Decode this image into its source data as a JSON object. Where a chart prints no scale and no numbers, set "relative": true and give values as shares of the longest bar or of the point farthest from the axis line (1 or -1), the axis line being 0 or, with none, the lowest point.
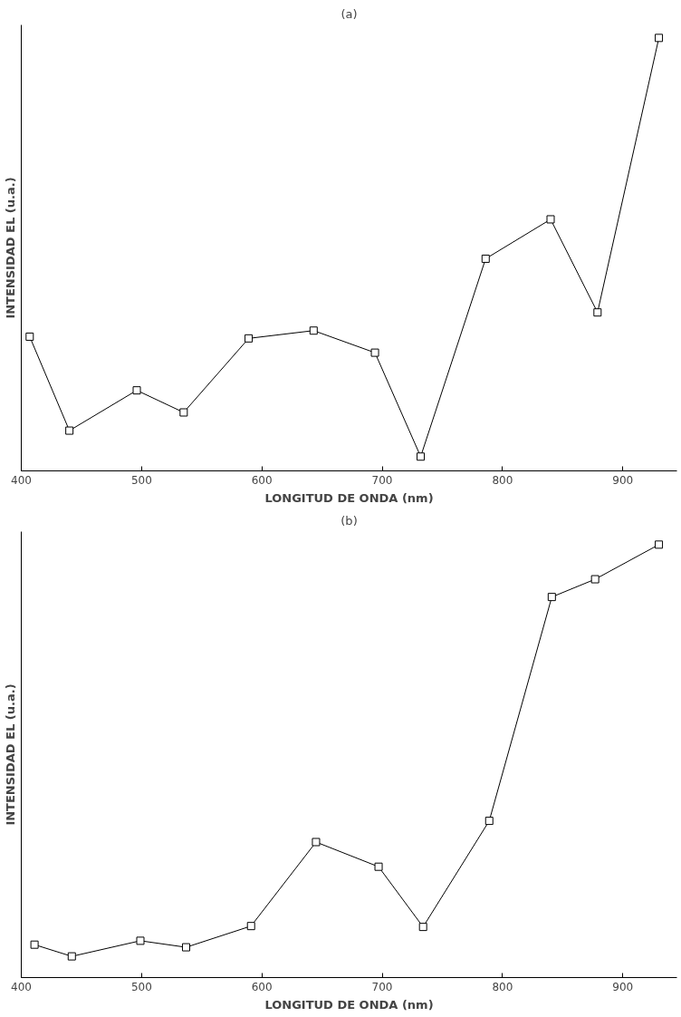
{
  "chart_data": [
    {
      "type": "line",
      "title": "(a)",
      "xlabel": "LONGITUD DE ONDA (nm)",
      "ylabel": "INTENSIDAD EL (u.a.)",
      "relative": true,
      "marker": "square",
      "line_style": "solid",
      "tick_labels": "x",
      "x": [
        407,
        440,
        496,
        535,
        589,
        643,
        694,
        732,
        786,
        840,
        879,
        930
      ],
      "xlim": [
        400,
        945
      ],
      "xticks": [
        400,
        500,
        600,
        700,
        800,
        900
      ],
      "series": [
        {
          "color": "#000000",
          "values": [
            0.31,
            0.093,
            0.186,
            0.135,
            0.306,
            0.324,
            0.273,
            0.033,
            0.49,
            0.581,
            0.366,
            1
          ]
        }
      ]
    },
    {
      "type": "line",
      "title": "(b)",
      "xlabel": "LONGITUD DE ONDA (nm)",
      "ylabel": "INTENSIDAD EL (u.a.)",
      "relative": true,
      "marker": "square",
      "line_style": "solid",
      "tick_labels": "x",
      "x": [
        411,
        442,
        499,
        537,
        591,
        645,
        697,
        734,
        789,
        841,
        877,
        930
      ],
      "xlim": [
        400,
        945
      ],
      "xticks": [
        400,
        500,
        600,
        700,
        800,
        900
      ],
      "series": [
        {
          "color": "#000000",
          "values": [
            0.076,
            0.049,
            0.085,
            0.07,
            0.119,
            0.313,
            0.256,
            0.117,
            0.362,
            0.879,
            0.92,
            1
          ]
        }
      ]
    }
  ]
}
